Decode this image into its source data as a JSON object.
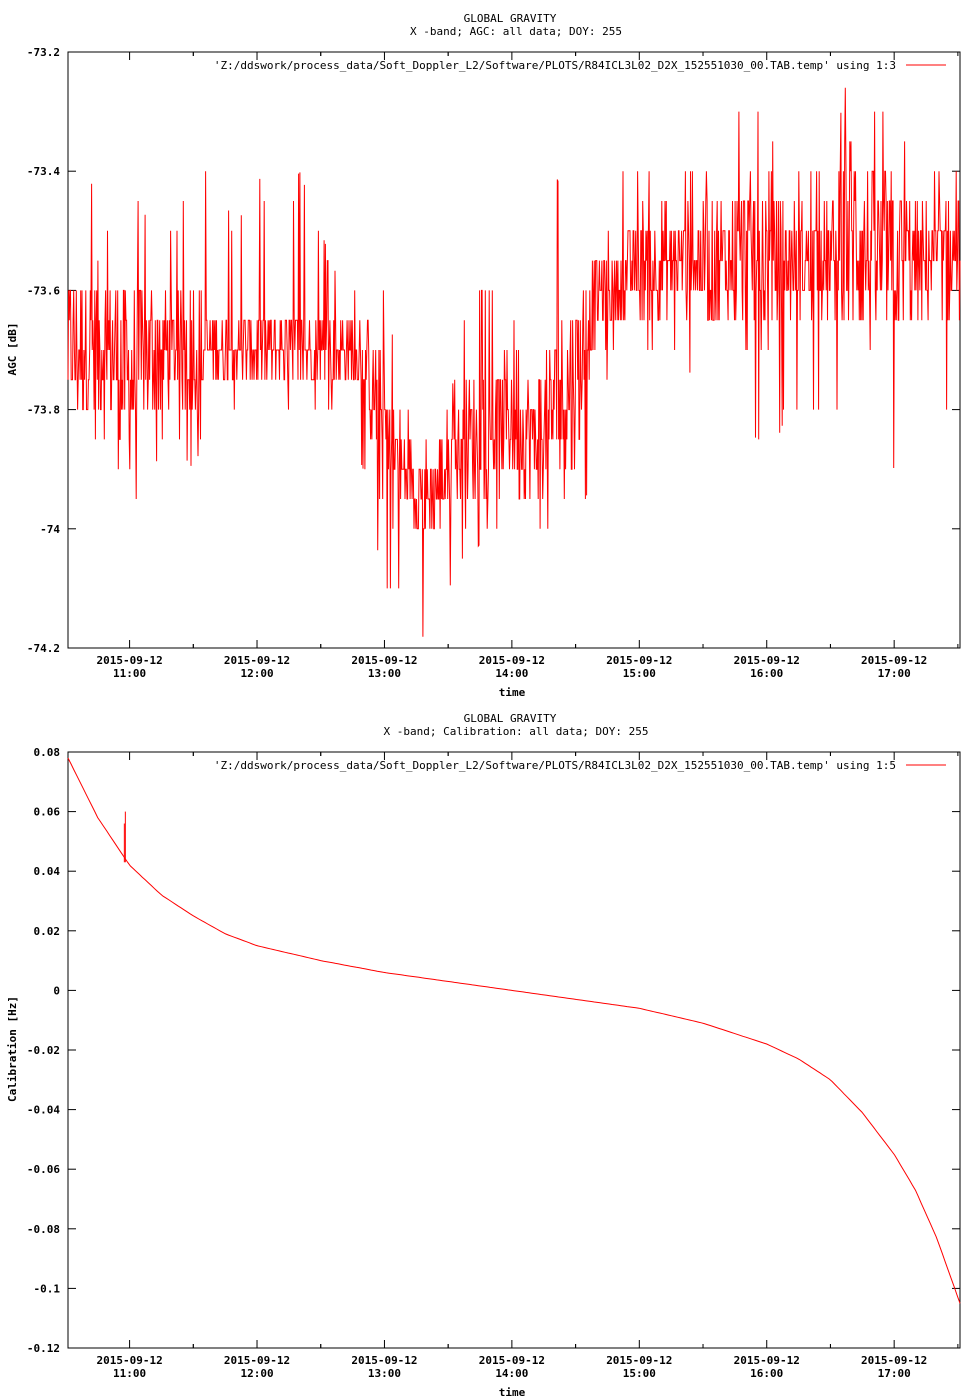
{
  "chart_data": [
    {
      "type": "line",
      "title": "GLOBAL GRAVITY",
      "subtitle": "X -band; AGC: all data; DOY: 255",
      "xlabel": "time",
      "ylabel": "AGC [dB]",
      "xlim": [
        "2015-09-12 10:31",
        "2015-09-12 17:31"
      ],
      "ylim": [
        -74.2,
        -73.2
      ],
      "yticks": [
        -73.2,
        -73.4,
        -73.6,
        -73.8,
        -74,
        -74.2
      ],
      "ytick_labels": [
        "-73.2",
        "-73.4",
        "-73.6",
        "-73.8",
        "-74",
        "-74.2"
      ],
      "xticks": [
        "2015-09-12 11:00",
        "2015-09-12 12:00",
        "2015-09-12 13:00",
        "2015-09-12 14:00",
        "2015-09-12 15:00",
        "2015-09-12 16:00",
        "2015-09-12 17:00"
      ],
      "xtick_labels": [
        {
          "date": "2015-09-12",
          "time": "11:00"
        },
        {
          "date": "2015-09-12",
          "time": "12:00"
        },
        {
          "date": "2015-09-12",
          "time": "13:00"
        },
        {
          "date": "2015-09-12",
          "time": "14:00"
        },
        {
          "date": "2015-09-12",
          "time": "15:00"
        },
        {
          "date": "2015-09-12",
          "time": "16:00"
        },
        {
          "date": "2015-09-12",
          "time": "17:00"
        }
      ],
      "grid": false,
      "legend_position": "top-right",
      "series": [
        {
          "name": "'Z:/ddswork/process_data/Soft_Doppler_L2/Software/PLOTS/R84ICL3L02_D2X_152551030_00.TAB.temp' using 1:3",
          "color": "#ff0000",
          "x": [
            "2015-09-12 10:31",
            "2015-09-12 10:40",
            "2015-09-12 10:50",
            "2015-09-12 11:00",
            "2015-09-12 11:10",
            "2015-09-12 11:20",
            "2015-09-12 11:30",
            "2015-09-12 11:40",
            "2015-09-12 11:50",
            "2015-09-12 12:00",
            "2015-09-12 12:10",
            "2015-09-12 12:20",
            "2015-09-12 12:30",
            "2015-09-12 12:40",
            "2015-09-12 12:50",
            "2015-09-12 13:00",
            "2015-09-12 13:10",
            "2015-09-12 13:20",
            "2015-09-12 13:30",
            "2015-09-12 13:40",
            "2015-09-12 13:50",
            "2015-09-12 14:00",
            "2015-09-12 14:10",
            "2015-09-12 14:20",
            "2015-09-12 14:30",
            "2015-09-12 14:40",
            "2015-09-12 14:50",
            "2015-09-12 15:00",
            "2015-09-12 15:10",
            "2015-09-12 15:20",
            "2015-09-12 15:30",
            "2015-09-12 15:40",
            "2015-09-12 15:50",
            "2015-09-12 16:00",
            "2015-09-12 16:10",
            "2015-09-12 16:20",
            "2015-09-12 16:30",
            "2015-09-12 16:40",
            "2015-09-12 16:50",
            "2015-09-12 17:00",
            "2015-09-12 17:10",
            "2015-09-12 17:20",
            "2015-09-12 17:31"
          ],
          "y": [
            -73.7,
            -73.7,
            -73.7,
            -73.75,
            -73.7,
            -73.7,
            -73.7,
            -73.7,
            -73.7,
            -73.7,
            -73.7,
            -73.7,
            -73.7,
            -73.7,
            -73.7,
            -73.85,
            -73.9,
            -73.95,
            -73.9,
            -73.85,
            -73.85,
            -73.8,
            -73.85,
            -73.8,
            -73.75,
            -73.6,
            -73.6,
            -73.55,
            -73.55,
            -73.55,
            -73.55,
            -73.55,
            -73.55,
            -73.55,
            -73.55,
            -73.55,
            -73.55,
            -73.5,
            -73.55,
            -73.55,
            -73.55,
            -73.55,
            -73.55
          ],
          "y_min": [
            -73.9,
            -73.9,
            -74.0,
            -74.0,
            -73.9,
            -73.85,
            -73.9,
            -73.8,
            -73.8,
            -73.8,
            -73.8,
            -73.8,
            -73.8,
            -73.8,
            -73.9,
            -74.1,
            -74.1,
            -74.2,
            -74.1,
            -74.05,
            -74.0,
            -74.05,
            -74.0,
            -74.0,
            -74.1,
            -73.8,
            -73.7,
            -73.7,
            -73.7,
            -73.7,
            -73.8,
            -73.7,
            -73.8,
            -73.9,
            -73.8,
            -73.8,
            -73.8,
            -73.8,
            -73.8,
            -73.9,
            -73.8,
            -73.8,
            -73.8
          ],
          "y_max": [
            -73.5,
            -73.4,
            -73.5,
            -73.4,
            -73.5,
            -73.5,
            -73.4,
            -73.4,
            -73.5,
            -73.4,
            -73.5,
            -73.4,
            -73.5,
            -73.6,
            -73.6,
            -73.6,
            -73.8,
            -73.8,
            -73.8,
            -73.6,
            -73.6,
            -73.5,
            -73.5,
            -73.4,
            -73.5,
            -73.5,
            -73.4,
            -73.4,
            -73.4,
            -73.4,
            -73.4,
            -73.3,
            -73.3,
            -73.3,
            -73.4,
            -73.4,
            -73.4,
            -73.2,
            -73.3,
            -73.3,
            -73.4,
            -73.4,
            -73.4
          ]
        }
      ]
    },
    {
      "type": "line",
      "title": "GLOBAL GRAVITY",
      "subtitle": "X -band; Calibration: all data; DOY: 255",
      "xlabel": "time",
      "ylabel": "Calibration [Hz]",
      "xlim": [
        "2015-09-12 10:31",
        "2015-09-12 17:31"
      ],
      "ylim": [
        -0.12,
        0.08
      ],
      "yticks": [
        0.08,
        0.06,
        0.04,
        0.02,
        0,
        -0.02,
        -0.04,
        -0.06,
        -0.08,
        -0.1,
        -0.12
      ],
      "ytick_labels": [
        "0.08",
        "0.06",
        "0.04",
        "0.02",
        "0",
        "-0.02",
        "-0.04",
        "-0.06",
        "-0.08",
        "-0.1",
        "-0.12"
      ],
      "xticks": [
        "2015-09-12 11:00",
        "2015-09-12 12:00",
        "2015-09-12 13:00",
        "2015-09-12 14:00",
        "2015-09-12 15:00",
        "2015-09-12 16:00",
        "2015-09-12 17:00"
      ],
      "xtick_labels": [
        {
          "date": "2015-09-12",
          "time": "11:00"
        },
        {
          "date": "2015-09-12",
          "time": "12:00"
        },
        {
          "date": "2015-09-12",
          "time": "13:00"
        },
        {
          "date": "2015-09-12",
          "time": "14:00"
        },
        {
          "date": "2015-09-12",
          "time": "15:00"
        },
        {
          "date": "2015-09-12",
          "time": "16:00"
        },
        {
          "date": "2015-09-12",
          "time": "17:00"
        }
      ],
      "grid": false,
      "legend_position": "top-right",
      "series": [
        {
          "name": "'Z:/ddswork/process_data/Soft_Doppler_L2/Software/PLOTS/R84ICL3L02_D2X_152551030_00.TAB.temp' using 1:5",
          "color": "#ff0000",
          "x": [
            "2015-09-12 10:31",
            "2015-09-12 10:45",
            "2015-09-12 11:00",
            "2015-09-12 11:15",
            "2015-09-12 11:30",
            "2015-09-12 11:45",
            "2015-09-12 12:00",
            "2015-09-12 12:30",
            "2015-09-12 13:00",
            "2015-09-12 13:30",
            "2015-09-12 14:00",
            "2015-09-12 14:30",
            "2015-09-12 15:00",
            "2015-09-12 15:30",
            "2015-09-12 16:00",
            "2015-09-12 16:15",
            "2015-09-12 16:30",
            "2015-09-12 16:45",
            "2015-09-12 17:00",
            "2015-09-12 17:10",
            "2015-09-12 17:20",
            "2015-09-12 17:31"
          ],
          "y": [
            0.078,
            0.058,
            0.042,
            0.032,
            0.025,
            0.019,
            0.015,
            0.01,
            0.006,
            0.003,
            0.0,
            -0.003,
            -0.006,
            -0.011,
            -0.018,
            -0.023,
            -0.03,
            -0.041,
            -0.055,
            -0.067,
            -0.083,
            -0.105
          ],
          "spike": {
            "x": "2015-09-12 10:58",
            "y_from": 0.043,
            "y_to": 0.06
          }
        }
      ]
    }
  ]
}
